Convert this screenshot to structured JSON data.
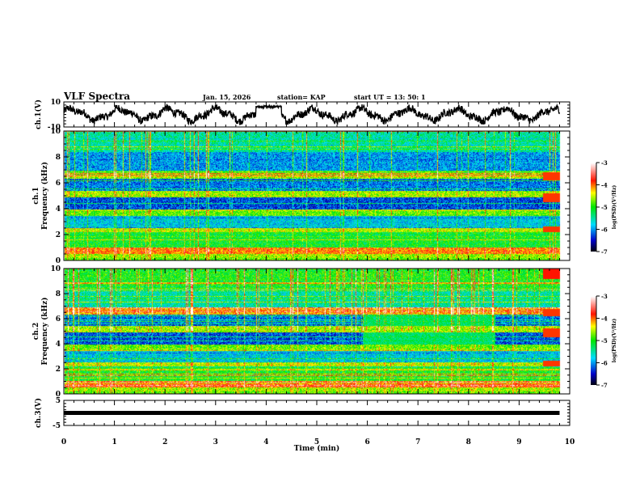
{
  "header": {
    "title": "VLF Spectra",
    "date": "Jan. 15, 2026",
    "station": "station= KAP",
    "start_ut": "start UT =   13: 50: 1"
  },
  "chart_data": [
    {
      "type": "line",
      "name": "ch1-waveform",
      "ylabel": "ch.1(V)",
      "ylim": [
        -10,
        10
      ],
      "yticks": [
        "10",
        "-10"
      ],
      "xlim": [
        0,
        10
      ],
      "data_end_x": 9.8,
      "description_series": "oscillating voltage trace roughly between -10 and +10 V with ~1 min period"
    },
    {
      "type": "heatmap",
      "name": "ch1-spectrogram",
      "ylabel_line1": "ch.1",
      "ylabel_line2": "Frequency (kHz)",
      "ylim": [
        0,
        10
      ],
      "yticks": [
        "0",
        "2",
        "4",
        "6",
        "8",
        "10"
      ],
      "xlim": [
        0,
        10
      ],
      "data_end_x": 9.8,
      "colorbar": {
        "label": "log(PSD)(V²/Hz)",
        "range": [
          -7,
          -3
        ],
        "ticks": [
          "-3",
          "-4",
          "-5",
          "-6",
          "-7"
        ]
      }
    },
    {
      "type": "heatmap",
      "name": "ch2-spectrogram",
      "ylabel_line1": "ch.2",
      "ylabel_line2": "Frequency (kHz)",
      "ylim": [
        0,
        10
      ],
      "yticks": [
        "0",
        "2",
        "4",
        "6",
        "8",
        "10"
      ],
      "xlim": [
        0,
        10
      ],
      "data_end_x": 9.8,
      "colorbar": {
        "label": "log(PSD)(V²/Hz)",
        "range": [
          -7,
          -3
        ],
        "ticks": [
          "-3",
          "-4",
          "-5",
          "-6",
          "-7"
        ]
      }
    },
    {
      "type": "line",
      "name": "ch3-waveform",
      "ylabel": "ch.3(V)",
      "ylim": [
        -5,
        5
      ],
      "yticks": [
        "5",
        "-5"
      ],
      "xlim": [
        0,
        10
      ],
      "xticks": [
        "0",
        "1",
        "2",
        "3",
        "4",
        "5",
        "6",
        "7",
        "8",
        "9",
        "10"
      ],
      "xlabel": "Time  (min)",
      "constant_value": 0,
      "data_end_x": 9.8
    }
  ],
  "colors": {
    "trace": "#000000",
    "axis": "#000000",
    "background": "#ffffff"
  }
}
